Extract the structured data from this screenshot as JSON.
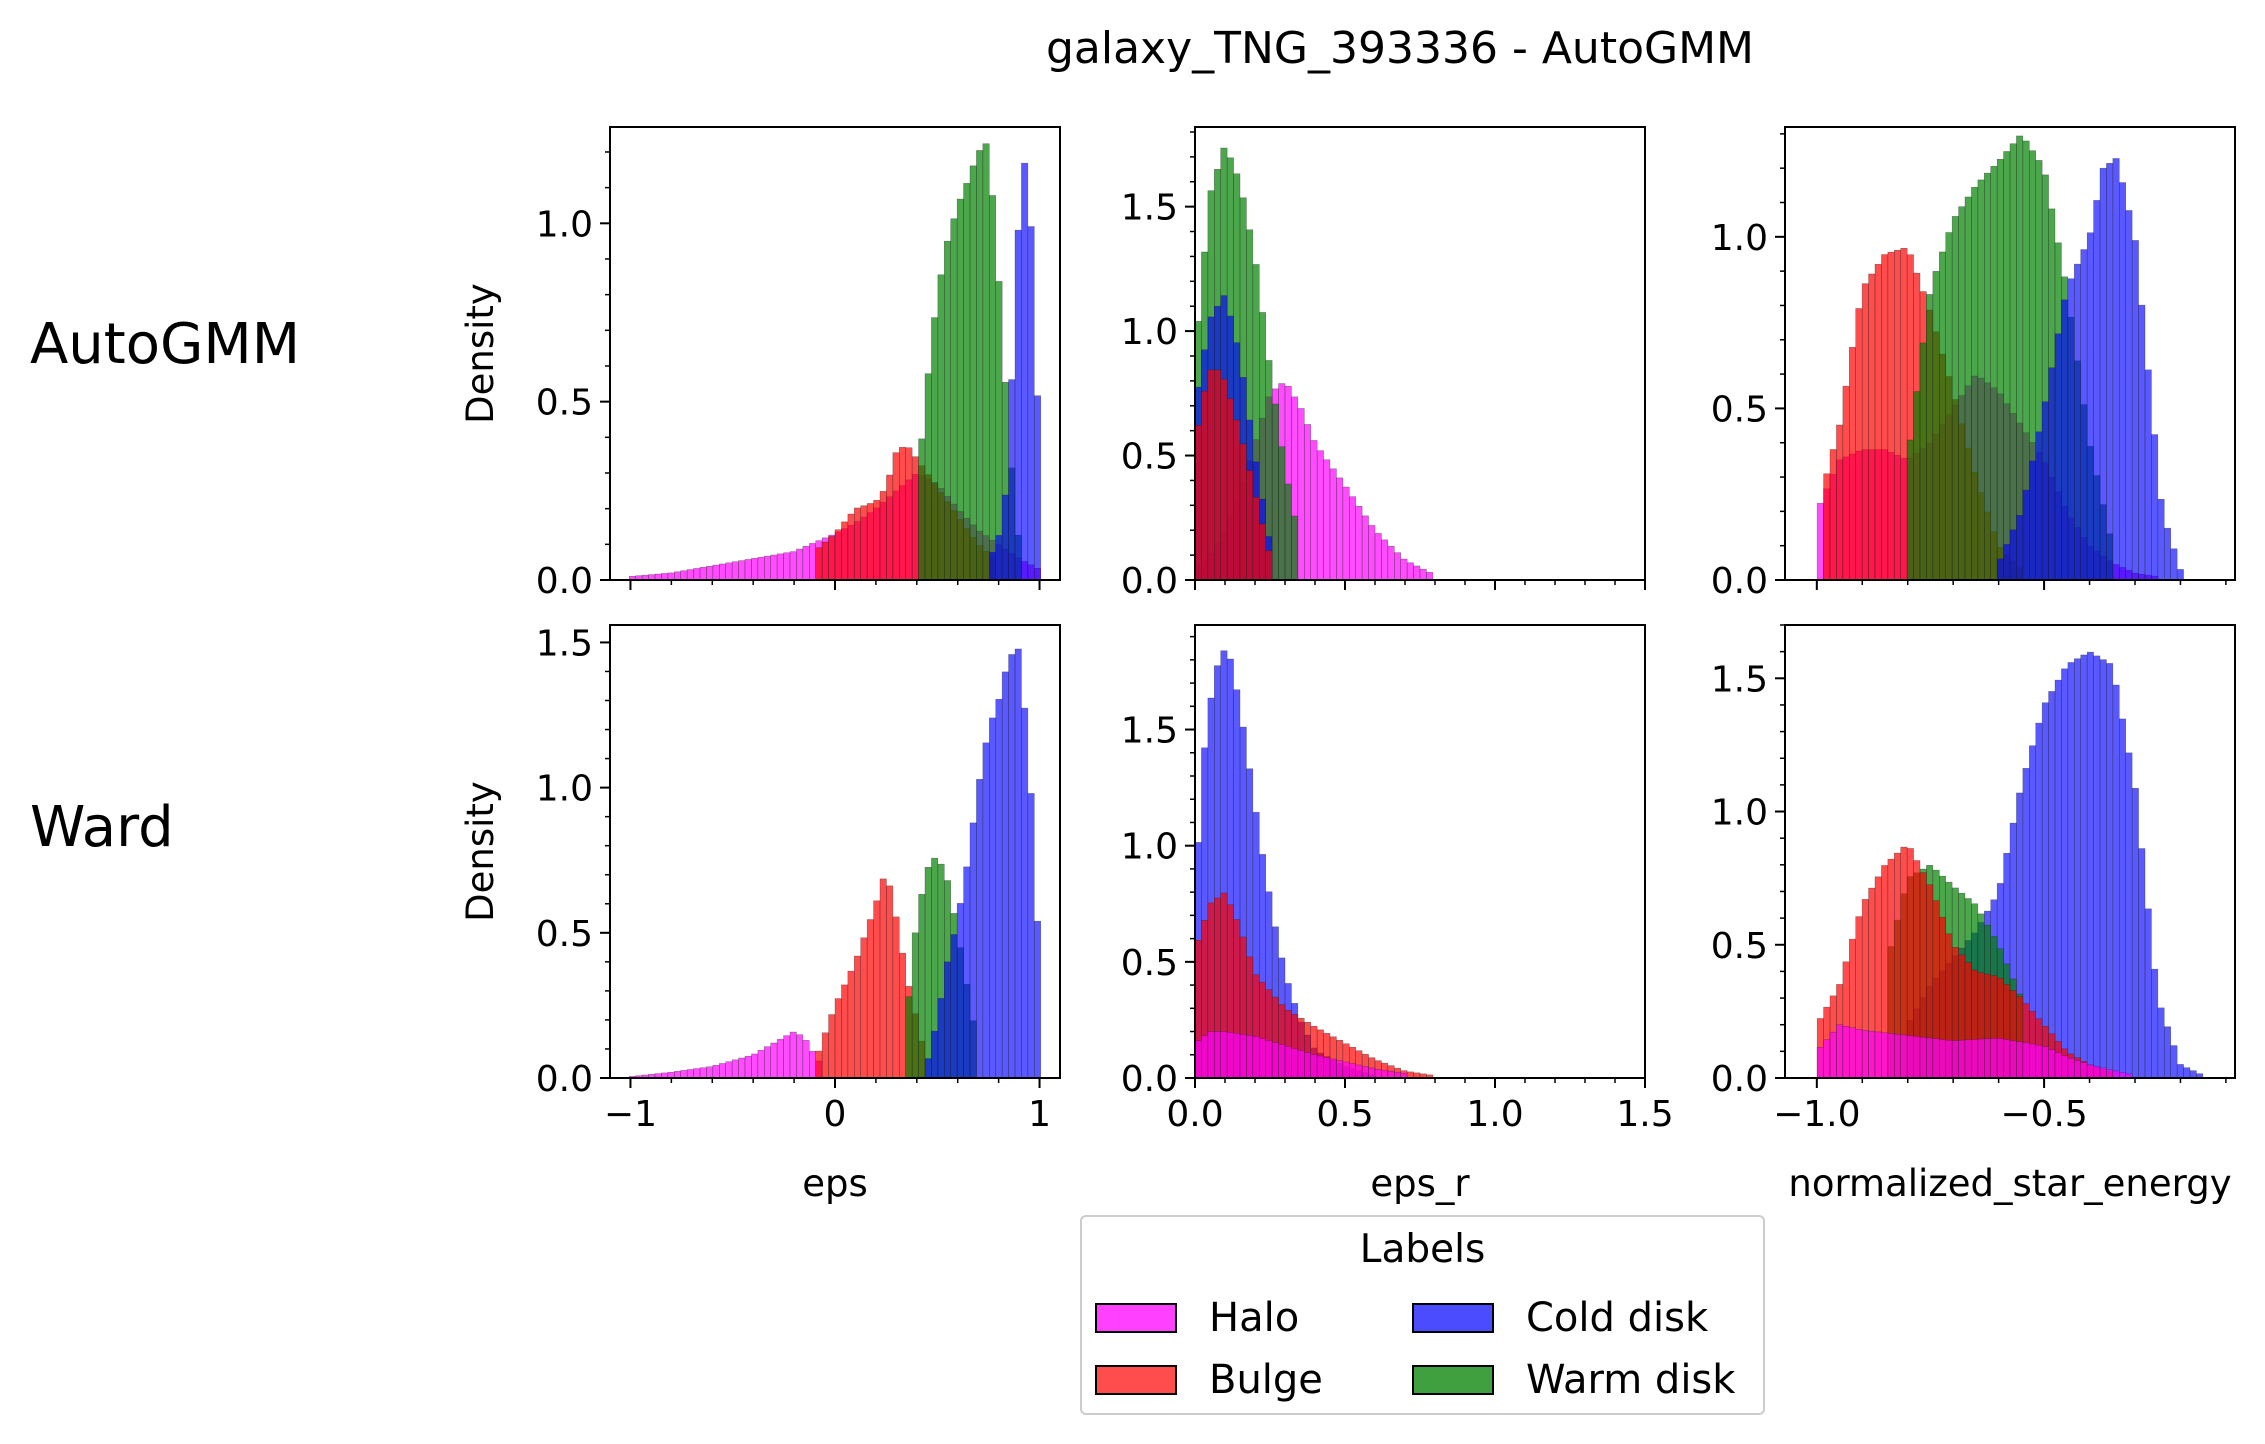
{
  "title": "galaxy_TNG_393336 - AutoGMM",
  "row_labels": [
    "AutoGMM",
    "Ward"
  ],
  "legend": {
    "title": "Labels",
    "items": [
      {
        "label": "Halo",
        "color": "#ff00ff"
      },
      {
        "label": "Cold disk",
        "color": "#0000ff"
      },
      {
        "label": "Bulge",
        "color": "#ff0000"
      },
      {
        "label": "Warm disk",
        "color": "#008000"
      }
    ]
  },
  "colors": {
    "Halo": "#ff00ff",
    "Bulge": "#ff0000",
    "Cold disk": "#0000ff",
    "Warm disk": "#008000"
  },
  "chart_data": [
    {
      "type": "area",
      "row": "AutoGMM",
      "col": 0,
      "xlabel": "",
      "ylabel": "Density",
      "xlim": [
        -1.1,
        1.1
      ],
      "ylim": [
        0,
        1.27
      ],
      "yticks": [
        "0.0",
        "0.5",
        "1.0"
      ],
      "xticks": [],
      "series": [
        {
          "name": "Halo",
          "x": [
            -1.0,
            -0.8,
            -0.6,
            -0.4,
            -0.2,
            0.0,
            0.1,
            0.2,
            0.3,
            0.4,
            0.5,
            0.6,
            0.7,
            0.8,
            0.9,
            1.0
          ],
          "values": [
            0.01,
            0.02,
            0.04,
            0.06,
            0.08,
            0.13,
            0.16,
            0.2,
            0.25,
            0.3,
            0.27,
            0.2,
            0.14,
            0.1,
            0.06,
            0.03
          ]
        },
        {
          "name": "Bulge",
          "x": [
            -0.1,
            0.0,
            0.1,
            0.2,
            0.25,
            0.3,
            0.35,
            0.4,
            0.45,
            0.5,
            0.6,
            0.7,
            0.8
          ],
          "values": [
            0.08,
            0.13,
            0.2,
            0.22,
            0.26,
            0.36,
            0.38,
            0.34,
            0.3,
            0.26,
            0.18,
            0.1,
            0.05
          ]
        },
        {
          "name": "Warm disk",
          "x": [
            0.4,
            0.45,
            0.5,
            0.55,
            0.6,
            0.65,
            0.7,
            0.75,
            0.8,
            0.85,
            0.9
          ],
          "values": [
            0.25,
            0.55,
            0.8,
            0.95,
            1.05,
            1.12,
            1.2,
            1.23,
            0.85,
            0.4,
            0.1
          ]
        },
        {
          "name": "Cold disk",
          "x": [
            0.75,
            0.8,
            0.85,
            0.88,
            0.91,
            0.94,
            0.97,
            1.0
          ],
          "values": [
            0.05,
            0.12,
            0.3,
            0.85,
            1.1,
            1.22,
            0.85,
            0.35
          ]
        }
      ]
    },
    {
      "type": "area",
      "row": "AutoGMM",
      "col": 1,
      "xlabel": "",
      "ylabel": "",
      "xlim": [
        0,
        1.5
      ],
      "ylim": [
        0,
        1.82
      ],
      "yticks": [
        "0.0",
        "0.5",
        "1.0",
        "1.5"
      ],
      "xticks": [],
      "series": [
        {
          "name": "Halo",
          "x": [
            0.0,
            0.05,
            0.1,
            0.15,
            0.2,
            0.25,
            0.3,
            0.35,
            0.4,
            0.5,
            0.6,
            0.7,
            0.8
          ],
          "values": [
            0.05,
            0.1,
            0.2,
            0.35,
            0.55,
            0.75,
            0.8,
            0.7,
            0.55,
            0.38,
            0.2,
            0.08,
            0.02
          ]
        },
        {
          "name": "Warm disk",
          "x": [
            0.0,
            0.05,
            0.1,
            0.15,
            0.2,
            0.25,
            0.3,
            0.35
          ],
          "values": [
            0.9,
            1.55,
            1.75,
            1.6,
            1.3,
            0.85,
            0.45,
            0.15
          ]
        },
        {
          "name": "Cold disk",
          "x": [
            0.0,
            0.05,
            0.1,
            0.15,
            0.2,
            0.25
          ],
          "values": [
            0.7,
            1.05,
            1.15,
            0.9,
            0.5,
            0.15
          ]
        },
        {
          "name": "Bulge",
          "x": [
            0.0,
            0.03,
            0.06,
            0.1,
            0.15,
            0.2,
            0.25
          ],
          "values": [
            0.55,
            0.75,
            0.87,
            0.8,
            0.6,
            0.35,
            0.1
          ]
        }
      ]
    },
    {
      "type": "area",
      "row": "AutoGMM",
      "col": 2,
      "xlabel": "",
      "ylabel": "",
      "xlim": [
        -1.07,
        -0.08
      ],
      "ylim": [
        0,
        1.32
      ],
      "yticks": [
        "0.0",
        "0.5",
        "1.0"
      ],
      "xticks": [],
      "series": [
        {
          "name": "Halo",
          "x": [
            -1.0,
            -0.95,
            -0.9,
            -0.85,
            -0.8,
            -0.75,
            -0.7,
            -0.65,
            -0.6,
            -0.55,
            -0.5,
            -0.45,
            -0.4,
            -0.35,
            -0.3,
            -0.25
          ],
          "values": [
            0.2,
            0.35,
            0.38,
            0.38,
            0.35,
            0.4,
            0.5,
            0.6,
            0.55,
            0.45,
            0.35,
            0.2,
            0.1,
            0.05,
            0.02,
            0.01
          ]
        },
        {
          "name": "Bulge",
          "x": [
            -0.98,
            -0.95,
            -0.9,
            -0.85,
            -0.8,
            -0.75,
            -0.7,
            -0.65,
            -0.6,
            -0.55
          ],
          "values": [
            0.3,
            0.45,
            0.85,
            0.95,
            0.97,
            0.78,
            0.55,
            0.3,
            0.1,
            0.03
          ]
        },
        {
          "name": "Warm disk",
          "x": [
            -0.8,
            -0.75,
            -0.7,
            -0.65,
            -0.6,
            -0.55,
            -0.5,
            -0.45,
            -0.4,
            -0.35
          ],
          "values": [
            0.35,
            0.85,
            1.05,
            1.15,
            1.22,
            1.3,
            1.2,
            0.85,
            0.4,
            0.1
          ]
        },
        {
          "name": "Cold disk",
          "x": [
            -0.6,
            -0.55,
            -0.5,
            -0.45,
            -0.4,
            -0.37,
            -0.34,
            -0.3,
            -0.27,
            -0.24,
            -0.2
          ],
          "values": [
            0.05,
            0.2,
            0.5,
            0.85,
            1.0,
            1.2,
            1.23,
            1.0,
            0.6,
            0.2,
            0.03
          ]
        }
      ]
    },
    {
      "type": "area",
      "row": "Ward",
      "col": 0,
      "xlabel": "eps",
      "ylabel": "Density",
      "xlim": [
        -1.1,
        1.1
      ],
      "ylim": [
        0,
        1.56
      ],
      "yticks": [
        "0.0",
        "0.5",
        "1.0",
        "1.5"
      ],
      "xticks": [
        "−1",
        "0",
        "1"
      ],
      "series": [
        {
          "name": "Halo",
          "x": [
            -1.0,
            -0.8,
            -0.6,
            -0.4,
            -0.3,
            -0.2,
            -0.15,
            -0.1,
            -0.05
          ],
          "values": [
            0.005,
            0.02,
            0.04,
            0.08,
            0.12,
            0.16,
            0.14,
            0.08,
            0.03
          ]
        },
        {
          "name": "Bulge",
          "x": [
            -0.1,
            0.0,
            0.1,
            0.15,
            0.2,
            0.25,
            0.3,
            0.35,
            0.4,
            0.45
          ],
          "values": [
            0.05,
            0.25,
            0.4,
            0.5,
            0.6,
            0.72,
            0.55,
            0.35,
            0.2,
            0.05
          ]
        },
        {
          "name": "Warm disk",
          "x": [
            0.35,
            0.4,
            0.45,
            0.5,
            0.55,
            0.6,
            0.65,
            0.7
          ],
          "values": [
            0.2,
            0.55,
            0.72,
            0.77,
            0.68,
            0.5,
            0.3,
            0.1
          ]
        },
        {
          "name": "Cold disk",
          "x": [
            0.45,
            0.5,
            0.55,
            0.6,
            0.65,
            0.7,
            0.75,
            0.8,
            0.85,
            0.9,
            0.95,
            1.0
          ],
          "values": [
            0.05,
            0.2,
            0.4,
            0.55,
            0.75,
            1.0,
            1.2,
            1.3,
            1.45,
            1.48,
            1.1,
            0.4
          ]
        }
      ]
    },
    {
      "type": "area",
      "row": "Ward",
      "col": 1,
      "xlabel": "eps_r",
      "ylabel": "",
      "xlim": [
        0,
        1.5
      ],
      "ylim": [
        0,
        1.95
      ],
      "yticks": [
        "0.0",
        "0.5",
        "1.0",
        "1.5"
      ],
      "xticks": [
        "0.0",
        "0.5",
        "1.0",
        "1.5"
      ],
      "series": [
        {
          "name": "Cold disk",
          "x": [
            0.0,
            0.03,
            0.06,
            0.09,
            0.12,
            0.15,
            0.18,
            0.22,
            0.26,
            0.3,
            0.35,
            0.4,
            0.5,
            0.6
          ],
          "values": [
            0.8,
            1.4,
            1.7,
            1.85,
            1.8,
            1.6,
            1.35,
            1.0,
            0.7,
            0.45,
            0.25,
            0.12,
            0.05,
            0.01
          ]
        },
        {
          "name": "Bulge",
          "x": [
            0.0,
            0.05,
            0.1,
            0.15,
            0.2,
            0.3,
            0.4,
            0.5,
            0.6,
            0.7,
            0.8
          ],
          "values": [
            0.55,
            0.75,
            0.8,
            0.65,
            0.45,
            0.3,
            0.22,
            0.15,
            0.08,
            0.03,
            0.01
          ]
        },
        {
          "name": "Halo",
          "x": [
            0.0,
            0.05,
            0.1,
            0.2,
            0.3,
            0.4,
            0.5,
            0.6,
            0.7
          ],
          "values": [
            0.15,
            0.2,
            0.2,
            0.18,
            0.14,
            0.1,
            0.07,
            0.04,
            0.02
          ]
        }
      ]
    },
    {
      "type": "area",
      "row": "Ward",
      "col": 2,
      "xlabel": "normalized_star_energy",
      "ylabel": "",
      "xlim": [
        -1.07,
        -0.08
      ],
      "ylim": [
        0,
        1.7
      ],
      "yticks": [
        "0.0",
        "0.5",
        "1.0",
        "1.5"
      ],
      "xticks": [
        "−1.0",
        "−0.5"
      ],
      "series": [
        {
          "name": "Cold disk",
          "x": [
            -0.8,
            -0.75,
            -0.7,
            -0.65,
            -0.6,
            -0.55,
            -0.5,
            -0.45,
            -0.4,
            -0.35,
            -0.3,
            -0.25,
            -0.2,
            -0.15
          ],
          "values": [
            0.2,
            0.35,
            0.45,
            0.55,
            0.7,
            1.1,
            1.4,
            1.55,
            1.6,
            1.55,
            1.1,
            0.3,
            0.05,
            0.01
          ]
        },
        {
          "name": "Warm disk",
          "x": [
            -0.85,
            -0.8,
            -0.75,
            -0.7,
            -0.65,
            -0.6,
            -0.55
          ],
          "values": [
            0.4,
            0.75,
            0.8,
            0.72,
            0.65,
            0.5,
            0.3
          ]
        },
        {
          "name": "Bulge",
          "x": [
            -1.0,
            -0.95,
            -0.9,
            -0.85,
            -0.8,
            -0.75,
            -0.7,
            -0.65,
            -0.6,
            -0.55,
            -0.5,
            -0.45,
            -0.4,
            -0.35
          ],
          "values": [
            0.2,
            0.35,
            0.65,
            0.8,
            0.88,
            0.72,
            0.5,
            0.4,
            0.38,
            0.3,
            0.2,
            0.1,
            0.05,
            0.02
          ]
        },
        {
          "name": "Halo",
          "x": [
            -1.0,
            -0.95,
            -0.9,
            -0.8,
            -0.7,
            -0.6,
            -0.5,
            -0.45,
            -0.4,
            -0.35,
            -0.3
          ],
          "values": [
            0.1,
            0.2,
            0.18,
            0.16,
            0.14,
            0.15,
            0.12,
            0.08,
            0.05,
            0.03,
            0.01
          ]
        }
      ]
    }
  ]
}
